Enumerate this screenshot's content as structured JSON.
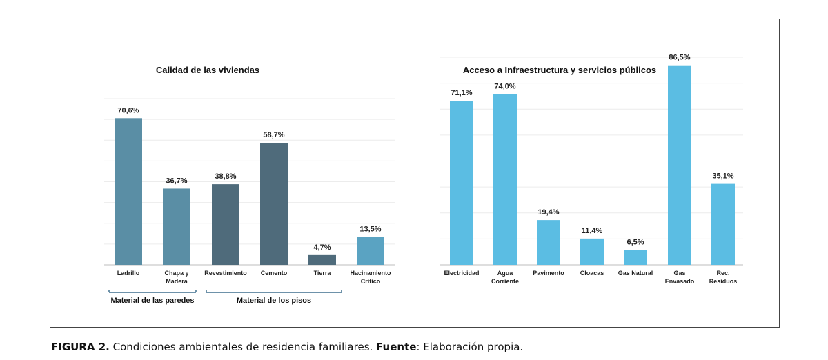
{
  "caption": {
    "label": "FIGURA 2.",
    "text": " Condiciones ambientales de residencia familiares. ",
    "source_label": "Fuente",
    "source_text": ": Elaboración propia."
  },
  "chart_data": [
    {
      "type": "bar",
      "title": "Calidad de las viviendas",
      "categories": [
        [
          "Ladrillo"
        ],
        [
          "Chapa y",
          "Madera"
        ],
        [
          "Revestimiento"
        ],
        [
          "Cemento"
        ],
        [
          "Tierra"
        ],
        [
          "Hacinamiento",
          "Crítico"
        ]
      ],
      "values": [
        70.6,
        36.7,
        38.8,
        58.7,
        4.7,
        13.5
      ],
      "value_labels": [
        "70,6%",
        "36,7%",
        "38,8%",
        "58,7%",
        "4,7%",
        "13,5%"
      ],
      "bar_colors": [
        "#5a8ea5",
        "#5a8ea5",
        "#4f6b7b",
        "#4f6b7b",
        "#4f6b7b",
        "#5aa3c2"
      ],
      "groups": [
        {
          "label": "Material de las paredes",
          "from": 0,
          "to": 1
        },
        {
          "label": "Material de los pisos",
          "from": 2,
          "to": 4
        }
      ],
      "ylim": [
        0,
        80
      ],
      "grid": true
    },
    {
      "type": "bar",
      "title": "Acceso a Infraestructura y servicios públicos",
      "categories": [
        [
          "Electricidad"
        ],
        [
          "Agua",
          "Corriente"
        ],
        [
          "Pavimento"
        ],
        [
          "Cloacas"
        ],
        [
          "Gas Natural"
        ],
        [
          "Gas",
          "Envasado"
        ],
        [
          "Rec.",
          "Residuos"
        ]
      ],
      "values": [
        71.1,
        74.0,
        19.4,
        11.4,
        6.5,
        86.5,
        35.1
      ],
      "value_labels": [
        "71,1%",
        "74,0%",
        "19,4%",
        "11,4%",
        "6,5%",
        "86,5%",
        "35,1%"
      ],
      "bar_colors": [
        "#5bbde3",
        "#5bbde3",
        "#5bbde3",
        "#5bbde3",
        "#5bbde3",
        "#5bbde3",
        "#5bbde3"
      ],
      "ylim": [
        0,
        90
      ],
      "grid": true
    }
  ]
}
